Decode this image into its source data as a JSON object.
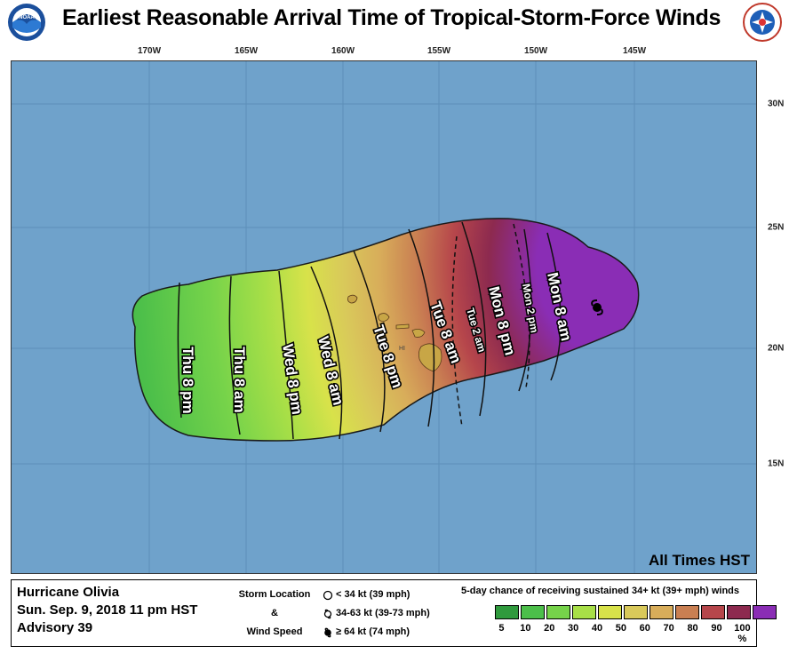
{
  "header": {
    "title": "Earliest Reasonable Arrival Time of Tropical-Storm-Force Winds",
    "noaa_logo_text": "NOAA"
  },
  "axes": {
    "longitudes": [
      "170W",
      "165W",
      "160W",
      "155W",
      "150W",
      "145W"
    ],
    "latitudes": [
      "30N",
      "25N",
      "20N",
      "15N"
    ]
  },
  "map": {
    "arrival_labels": [
      "Thu 8 pm",
      "Thu 8 am",
      "Wed 8 pm",
      "Wed 8 am",
      "Tue 8 pm",
      "Tue 8 am",
      "Tue 2 am",
      "Mon 8 pm",
      "Mon 2 pm",
      "Mon 8 am"
    ],
    "island_label": "HI",
    "time_zone_note": "All Times HST",
    "colors": {
      "ocean": "#6fa2cb",
      "p5": "#2f9a3d",
      "p10": "#4cbf4a",
      "p20": "#76d34a",
      "p30": "#a8df47",
      "p40": "#d8e24a",
      "p50": "#d9c95a",
      "p60": "#d8ad5a",
      "p70": "#c97f52",
      "p80": "#b6464b",
      "p90": "#8d2a4f",
      "p100": "#8a2db5"
    }
  },
  "legend": {
    "storm_name": "Hurricane Olivia",
    "date_time": "Sun. Sep. 9, 2018  11 pm HST",
    "advisory": "Advisory 39",
    "key_labels": [
      "Storm Location",
      "&",
      "Wind Speed"
    ],
    "key_items": [
      "< 34 kt (39 mph)",
      "34-63 kt (39-73 mph)",
      "≥ 64 kt (74 mph)"
    ],
    "prob_title": "5-day chance of receiving sustained 34+ kt (39+ mph) winds",
    "prob_ticks": [
      "5",
      "10",
      "20",
      "30",
      "40",
      "50",
      "60",
      "70",
      "80",
      "90",
      "100 %"
    ],
    "prob_colors": [
      "#2f9a3d",
      "#4cbf4a",
      "#76d34a",
      "#a8df47",
      "#d8e24a",
      "#d9c95a",
      "#d8ad5a",
      "#c97f52",
      "#b6464b",
      "#8d2a4f",
      "#8a2db5"
    ]
  }
}
